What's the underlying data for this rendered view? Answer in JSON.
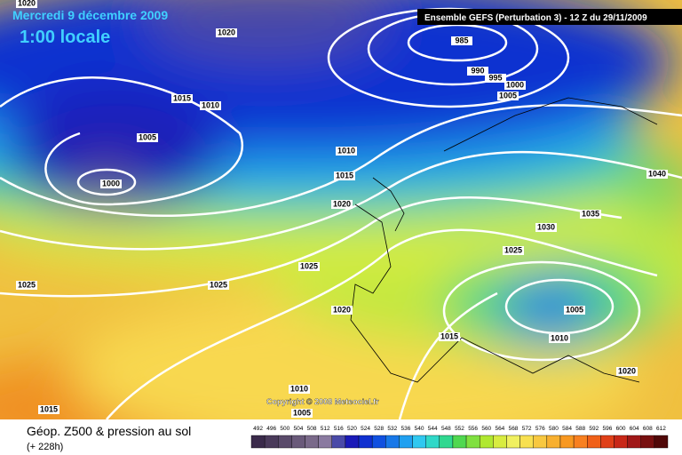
{
  "header": {
    "date": "Mercredi 9 décembre 2009",
    "time": "1:00 locale",
    "run": "Ensemble GEFS (Perturbation 3)  -  12 Z du 29/11/2009"
  },
  "isobars": [
    "1020",
    "1020",
    "985",
    "990",
    "995",
    "1000",
    "1005",
    "1015",
    "1010",
    "1005",
    "1000",
    "1010",
    "1015",
    "1020",
    "1040",
    "1035",
    "1030",
    "1025",
    "1025",
    "1025",
    "1025",
    "1020",
    "1005",
    "1010",
    "1015",
    "1020",
    "1010",
    "1005",
    "1015"
  ],
  "copyright": "Copyright © 2008 Meteociel.fr",
  "footer": {
    "title": "Géop. Z500 & pression au sol",
    "lead": "(+ 228h)"
  },
  "legend": {
    "values": [
      492,
      496,
      500,
      504,
      508,
      512,
      516,
      520,
      524,
      528,
      532,
      536,
      540,
      544,
      548,
      552,
      556,
      560,
      564,
      568,
      572,
      576,
      580,
      584,
      588,
      592,
      596,
      600,
      604,
      608,
      612
    ],
    "colors": [
      "#3a2a4a",
      "#4a3a5a",
      "#5a4a6a",
      "#6a5a7a",
      "#7a6a8a",
      "#8a7aa0",
      "#4a4aa8",
      "#1a1ab8",
      "#1030d0",
      "#1050e0",
      "#1878e8",
      "#20a0f0",
      "#30c8f0",
      "#30d8c8",
      "#30d890",
      "#50d850",
      "#80e040",
      "#b0e830",
      "#d8ec40",
      "#f0f060",
      "#f8e050",
      "#f8c840",
      "#f8b030",
      "#f89820",
      "#f88020",
      "#f06018",
      "#e04018",
      "#c82818",
      "#a01818",
      "#781010",
      "#500808"
    ]
  }
}
